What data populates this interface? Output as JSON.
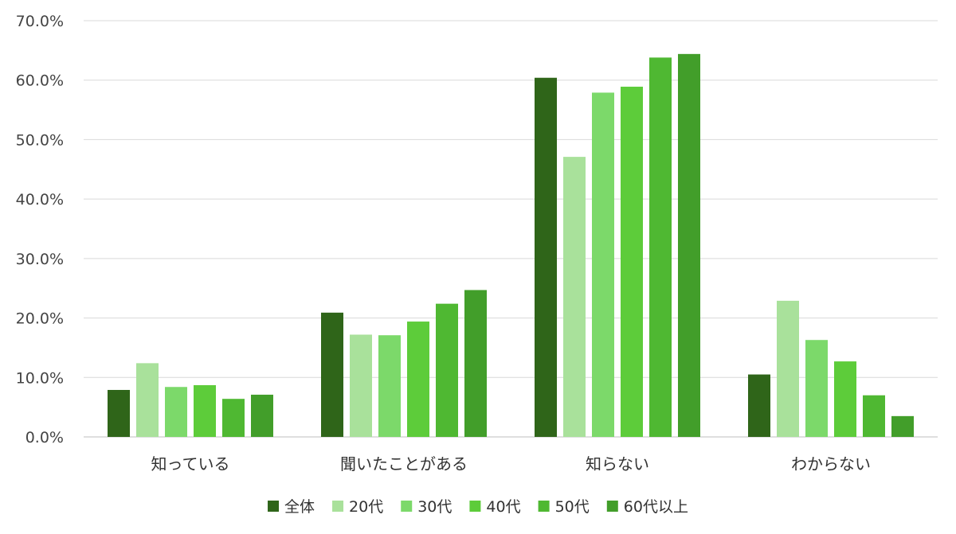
{
  "chart_data": {
    "type": "bar",
    "title": "",
    "xlabel": "",
    "ylabel": "",
    "categories": [
      "知っている",
      "聞いたことがある",
      "知らない",
      "わからない"
    ],
    "series": [
      {
        "name": "全体",
        "color": "#2f6519",
        "values": [
          7.9,
          20.9,
          60.4,
          10.5
        ]
      },
      {
        "name": "20代",
        "color": "#a9e19b",
        "values": [
          12.4,
          17.2,
          47.1,
          22.9
        ]
      },
      {
        "name": "30代",
        "color": "#7cd96a",
        "values": [
          8.4,
          17.1,
          57.9,
          16.3
        ]
      },
      {
        "name": "40代",
        "color": "#5dcc3a",
        "values": [
          8.7,
          19.4,
          58.9,
          12.7
        ]
      },
      {
        "name": "50代",
        "color": "#4fb832",
        "values": [
          6.4,
          22.4,
          63.8,
          7.0
        ]
      },
      {
        "name": "60代以上",
        "color": "#429e2a",
        "values": [
          7.1,
          24.7,
          64.4,
          3.5
        ]
      }
    ],
    "ylim": [
      0,
      70
    ],
    "y_ticks": [
      0,
      10,
      20,
      30,
      40,
      50,
      60,
      70
    ],
    "y_tick_labels": [
      "0.0%",
      "10.0%",
      "20.0%",
      "30.0%",
      "40.0%",
      "50.0%",
      "60.0%",
      "70.0%"
    ],
    "grid": true,
    "legend_position": "bottom"
  }
}
